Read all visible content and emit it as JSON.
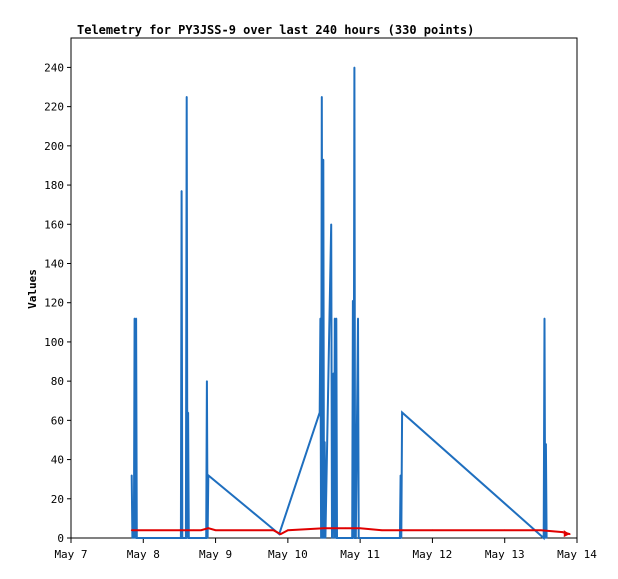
{
  "chart_data": {
    "type": "line",
    "title": "Telemetry for PY3JSS-9 over last 240 hours (330 points)",
    "xlabel": "",
    "ylabel": "Values",
    "x_range_days": [
      "May 7",
      "May 14"
    ],
    "xticks": [
      "May 7",
      "May 8",
      "May 9",
      "May 10",
      "May 11",
      "May 12",
      "May 13",
      "May 14"
    ],
    "ylim": [
      0,
      255
    ],
    "yticks": [
      0,
      20,
      40,
      60,
      80,
      100,
      120,
      140,
      160,
      180,
      200,
      220,
      240
    ],
    "grid": false,
    "legend": "none",
    "series": [
      {
        "color": "#1f6fbf",
        "x_days": [
          0.84,
          0.85,
          0.86,
          0.87,
          0.88,
          0.89,
          0.9,
          0.91,
          1.52,
          1.53,
          1.54,
          1.59,
          1.6,
          1.61,
          1.62,
          1.63,
          1.87,
          1.88,
          1.89,
          1.9,
          2.88,
          3.44,
          3.45,
          3.46,
          3.47,
          3.48,
          3.49,
          3.5,
          3.51,
          3.52,
          3.6,
          3.61,
          3.62,
          3.63,
          3.64,
          3.65,
          3.66,
          3.67,
          3.68,
          3.89,
          3.9,
          3.91,
          3.92,
          3.93,
          3.94,
          3.97,
          3.98,
          3.99,
          4.55,
          4.56,
          4.57,
          4.58,
          6.54,
          6.55,
          6.56,
          6.57,
          6.58
        ],
        "values": [
          32,
          0,
          16,
          0,
          112,
          0,
          112,
          0,
          0,
          177,
          0,
          0,
          225,
          0,
          64,
          0,
          0,
          80,
          0,
          32,
          2,
          64,
          112,
          0,
          225,
          0,
          193,
          0,
          49,
          0,
          160,
          0,
          28,
          84,
          0,
          112,
          0,
          112,
          0,
          0,
          121,
          0,
          240,
          0,
          0,
          112,
          0,
          0,
          0,
          32,
          0,
          64,
          0,
          112,
          0,
          48,
          0
        ]
      },
      {
        "color": "#e00000",
        "x_days": [
          0.84,
          1.5,
          1.7,
          1.8,
          1.9,
          2.0,
          2.8,
          2.9,
          3.0,
          3.5,
          3.8,
          4.0,
          4.3,
          4.6,
          5.0,
          6.0,
          6.5,
          6.8,
          6.9
        ],
        "values": [
          4,
          4,
          4,
          4,
          5,
          4,
          4,
          2,
          4,
          5,
          5,
          5,
          4,
          4,
          4,
          4,
          4,
          3,
          2
        ]
      }
    ]
  }
}
